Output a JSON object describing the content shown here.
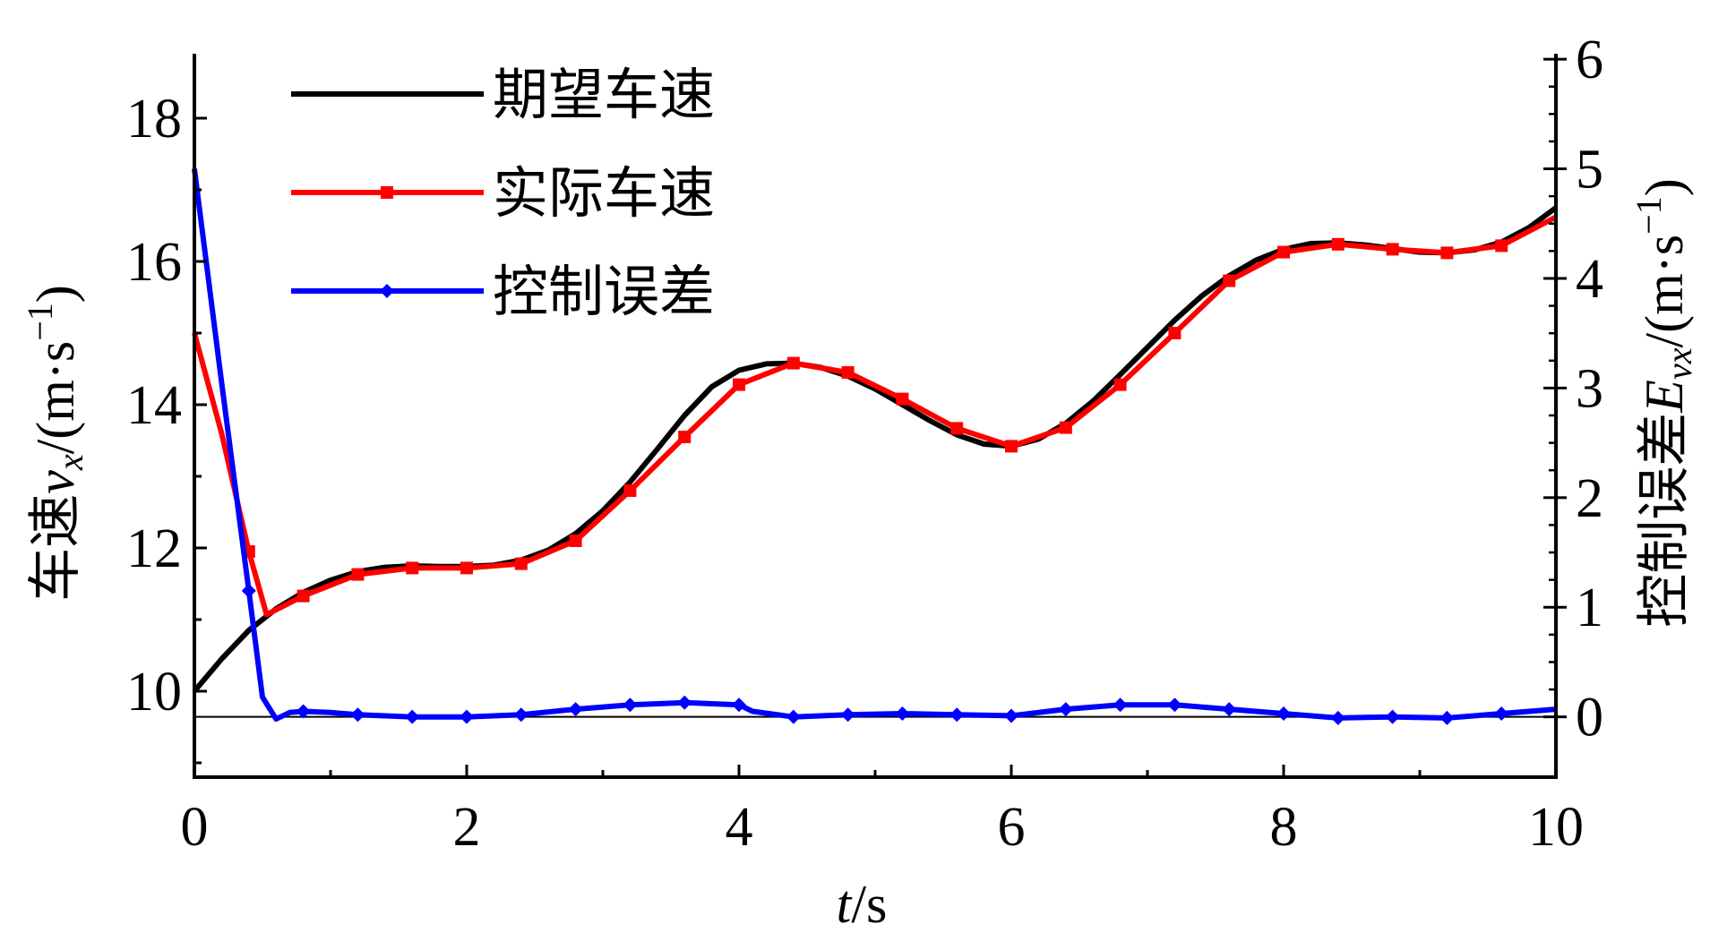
{
  "chart_data": {
    "type": "line",
    "xlabel": {
      "italic": "t",
      "rest": "/s"
    },
    "ylabel_left": {
      "prefix": "车速",
      "var": "v",
      "sub": "x",
      "unit": "/(m·s",
      "sup": "−1",
      "close": ")"
    },
    "ylabel_right": {
      "prefix": "控制误差",
      "var": "E",
      "sub": "vx",
      "unit": "/(m·s",
      "sup": "−1",
      "close": ")"
    },
    "xlim": [
      0,
      10
    ],
    "ylim_left": [
      8.8,
      18.9
    ],
    "ylim_right": [
      -0.55,
      6.05
    ],
    "x_ticks": [
      "0",
      "2",
      "4",
      "6",
      "8",
      "10"
    ],
    "y_left_ticks": [
      "10",
      "12",
      "14",
      "16",
      "18"
    ],
    "y_right_ticks": [
      "0",
      "1",
      "2",
      "3",
      "4",
      "5",
      "6"
    ],
    "legend_position": "top-left",
    "zero_reference_line": {
      "axis": "right",
      "value": 0
    },
    "series": [
      {
        "name": "期望车速",
        "axis": "left",
        "color": "#000000",
        "marker": "none",
        "x": [
          0,
          0.2,
          0.4,
          0.6,
          0.8,
          1.0,
          1.2,
          1.4,
          1.6,
          1.8,
          2.0,
          2.2,
          2.4,
          2.6,
          2.8,
          3.0,
          3.2,
          3.4,
          3.6,
          3.8,
          4.0,
          4.2,
          4.4,
          4.6,
          4.8,
          5.0,
          5.2,
          5.4,
          5.6,
          5.8,
          6.0,
          6.2,
          6.4,
          6.6,
          6.8,
          7.0,
          7.2,
          7.4,
          7.6,
          7.8,
          8.0,
          8.2,
          8.4,
          8.6,
          8.8,
          9.0,
          9.2,
          9.4,
          9.6,
          9.8,
          10.0
        ],
        "y": [
          10.0,
          10.45,
          10.85,
          11.15,
          11.38,
          11.55,
          11.67,
          11.73,
          11.75,
          11.74,
          11.74,
          11.76,
          11.83,
          11.97,
          12.2,
          12.52,
          12.92,
          13.38,
          13.85,
          14.25,
          14.48,
          14.57,
          14.58,
          14.52,
          14.4,
          14.22,
          14.0,
          13.78,
          13.58,
          13.45,
          13.42,
          13.52,
          13.74,
          14.05,
          14.42,
          14.8,
          15.18,
          15.52,
          15.8,
          16.02,
          16.17,
          16.25,
          16.26,
          16.23,
          16.18,
          16.13,
          16.12,
          16.16,
          16.27,
          16.47,
          16.75
        ]
      },
      {
        "name": "实际车速",
        "axis": "left",
        "color": "#ff0000",
        "marker": "square",
        "x": [
          0,
          0.2,
          0.4,
          0.53,
          0.8,
          1.2,
          1.6,
          2.0,
          2.4,
          2.8,
          3.2,
          3.6,
          4.0,
          4.4,
          4.8,
          5.2,
          5.6,
          6.0,
          6.4,
          6.8,
          7.2,
          7.6,
          8.0,
          8.4,
          8.8,
          9.2,
          9.6,
          10.0
        ],
        "markers_x": [
          0.4,
          0.8,
          1.2,
          1.6,
          2.0,
          2.4,
          2.8,
          3.2,
          3.6,
          4.0,
          4.4,
          4.8,
          5.2,
          5.6,
          6.0,
          6.4,
          6.8,
          7.2,
          7.6,
          8.0,
          8.4,
          8.8,
          9.2,
          9.6
        ],
        "y": [
          15.0,
          13.6,
          11.95,
          11.07,
          11.33,
          11.63,
          11.72,
          11.72,
          11.78,
          12.1,
          12.8,
          13.55,
          14.28,
          14.58,
          14.45,
          14.08,
          13.67,
          13.42,
          13.68,
          14.28,
          15.0,
          15.73,
          16.13,
          16.24,
          16.17,
          16.12,
          16.22,
          16.62
        ]
      },
      {
        "name": "控制误差",
        "axis": "right",
        "color": "#0000ff",
        "marker": "diamond",
        "x": [
          0,
          0.2,
          0.4,
          0.5,
          0.6,
          0.7,
          0.8,
          1.0,
          1.2,
          1.6,
          2.0,
          2.4,
          2.8,
          3.2,
          3.6,
          4.0,
          4.1,
          4.4,
          4.8,
          5.2,
          5.6,
          6.0,
          6.4,
          6.8,
          7.2,
          7.6,
          8.0,
          8.4,
          8.8,
          9.2,
          9.6,
          10.0
        ],
        "markers_x": [
          0.4,
          0.8,
          1.2,
          1.6,
          2.0,
          2.4,
          2.8,
          3.2,
          3.6,
          4.0,
          4.4,
          4.8,
          5.2,
          5.6,
          6.0,
          6.4,
          6.8,
          7.2,
          7.6,
          8.0,
          8.4,
          8.8,
          9.2,
          9.6
        ],
        "y": [
          5.0,
          3.05,
          1.15,
          0.18,
          -0.02,
          0.04,
          0.05,
          0.04,
          0.02,
          0.0,
          0.0,
          0.02,
          0.07,
          0.11,
          0.13,
          0.11,
          0.05,
          0.0,
          0.02,
          0.03,
          0.02,
          0.01,
          0.07,
          0.11,
          0.11,
          0.07,
          0.03,
          -0.01,
          0.0,
          -0.01,
          0.03,
          0.07
        ]
      }
    ]
  }
}
